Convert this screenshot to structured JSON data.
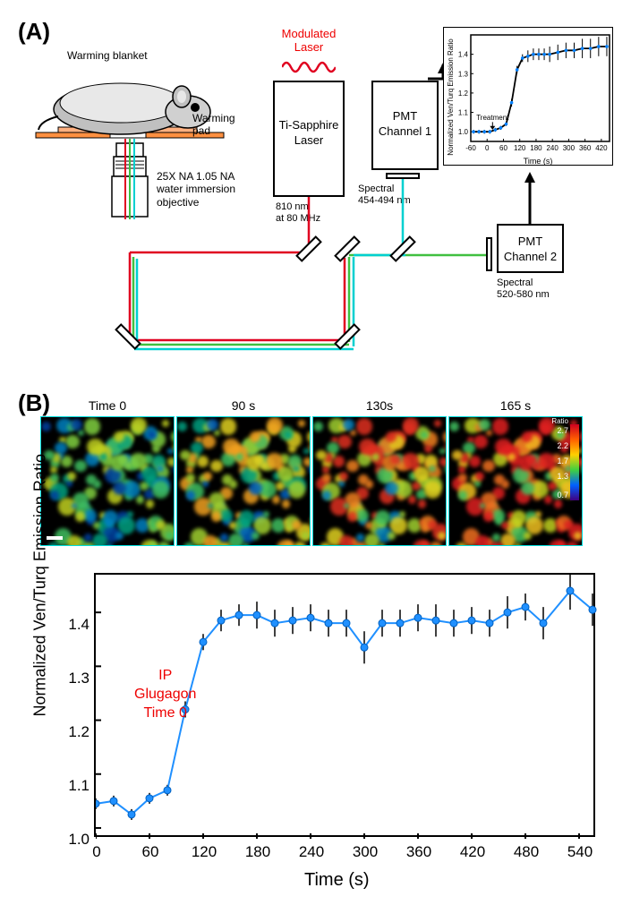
{
  "panelA": {
    "label": "(A)",
    "modulated_laser": "Modulated\nLaser",
    "laser_box": "Ti-Sapphire\nLaser",
    "pmt1": "PMT\nChannel 1",
    "pmt2": "PMT\nChannel 2",
    "warming_blanket": "Warming blanket",
    "warming_pad": "Warming\npad",
    "objective": "25X NA 1.05 NA\nwater immersion\nobjective",
    "wavelength": "810 nm\nat 80 MHz",
    "spectral1": "Spectral\n454-494 nm",
    "spectral2": "Spectral\n520-580 nm",
    "inset_chart": {
      "y_label": "Normalized Ven/Turq Emission Ratio",
      "x_label": "Time (s)",
      "treatment_label": "Treatment",
      "x_ticks": [
        -60,
        0,
        60,
        120,
        180,
        240,
        300,
        360,
        420
      ],
      "y_ticks": [
        1.0,
        1.1,
        1.2,
        1.3,
        1.4
      ],
      "data": {
        "x": [
          -50,
          -30,
          -10,
          10,
          30,
          50,
          70,
          90,
          110,
          130,
          150,
          170,
          190,
          210,
          230,
          260,
          290,
          320,
          350,
          380,
          410,
          440
        ],
        "y": [
          1.0,
          1.0,
          1.0,
          1.0,
          1.01,
          1.02,
          1.04,
          1.15,
          1.32,
          1.38,
          1.39,
          1.4,
          1.4,
          1.4,
          1.4,
          1.41,
          1.42,
          1.42,
          1.43,
          1.43,
          1.44,
          1.44
        ],
        "err": [
          0.01,
          0.01,
          0.01,
          0.01,
          0.01,
          0.01,
          0.01,
          0.02,
          0.02,
          0.02,
          0.03,
          0.03,
          0.03,
          0.03,
          0.04,
          0.04,
          0.04,
          0.04,
          0.05,
          0.05,
          0.05,
          0.05
        ]
      },
      "line_color": "#0080ff",
      "marker_color": "#0080ff",
      "err_color": "#000"
    },
    "beam_colors": {
      "laser": "#e00020",
      "cyan": "#00d0d0",
      "green": "#40c040"
    }
  },
  "panelB": {
    "label": "(B)",
    "time_labels": [
      "Time 0",
      "90 s",
      "130s",
      "165 s"
    ],
    "colorbar": {
      "label": "Ratio",
      "ticks": [
        2.7,
        2.2,
        1.7,
        1.3,
        0.7
      ],
      "colors": [
        "#d00020",
        "#ff6000",
        "#ffd000",
        "#40d040",
        "#0060ff",
        "#400080"
      ]
    },
    "ip_label": "IP\nGlugagon\nTime 0",
    "chart": {
      "y_label": "Normalized Ven/Turq Emission Ratio",
      "x_label": "Time (s)",
      "x_ticks": [
        0,
        60,
        120,
        180,
        240,
        300,
        360,
        420,
        480,
        540
      ],
      "y_ticks": [
        1.0,
        1.1,
        1.2,
        1.3,
        1.4
      ],
      "data": {
        "x": [
          0,
          20,
          40,
          60,
          80,
          100,
          120,
          140,
          160,
          180,
          200,
          220,
          240,
          260,
          280,
          300,
          320,
          340,
          360,
          380,
          400,
          420,
          440,
          460,
          480,
          500,
          530,
          555
        ],
        "y": [
          1.045,
          1.05,
          1.025,
          1.055,
          1.07,
          1.22,
          1.345,
          1.385,
          1.395,
          1.395,
          1.38,
          1.385,
          1.39,
          1.38,
          1.38,
          1.335,
          1.38,
          1.38,
          1.39,
          1.385,
          1.38,
          1.385,
          1.38,
          1.4,
          1.41,
          1.38,
          1.44,
          1.405
        ],
        "err": [
          0.01,
          0.01,
          0.01,
          0.01,
          0.01,
          0.015,
          0.015,
          0.02,
          0.02,
          0.025,
          0.025,
          0.025,
          0.025,
          0.025,
          0.025,
          0.03,
          0.025,
          0.025,
          0.025,
          0.03,
          0.025,
          0.025,
          0.025,
          0.03,
          0.025,
          0.03,
          0.035,
          0.03
        ]
      },
      "marker_color": "#2090ff",
      "line_color": "#2090ff",
      "err_color": "#000",
      "xlim": [
        0,
        560
      ],
      "ylim": [
        0.98,
        1.47
      ]
    }
  }
}
